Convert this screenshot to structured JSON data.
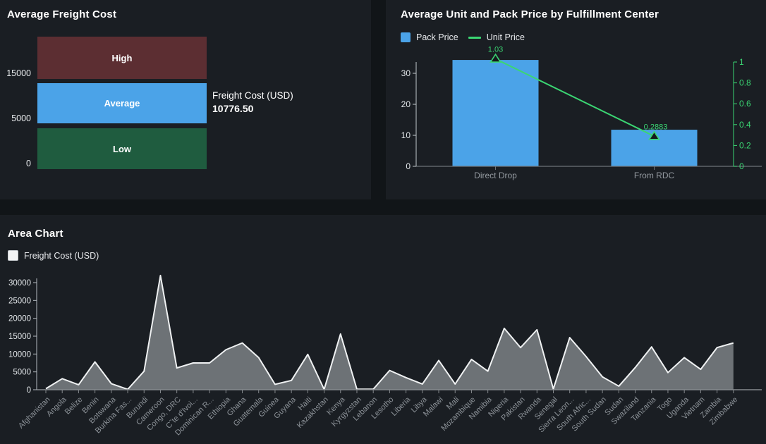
{
  "chart_data": [
    {
      "type": "gauge",
      "title": "Average Freight Cost",
      "axis_labels": [
        "15000",
        "5000",
        "0"
      ],
      "bands": [
        {
          "label": "High",
          "range": [
            15000,
            19000
          ],
          "color": "#5c2e32"
        },
        {
          "label": "Average",
          "range": [
            5000,
            15000
          ],
          "color": "#4ba3e8"
        },
        {
          "label": "Low",
          "range": [
            0,
            5000
          ],
          "color": "#1f5c3f"
        }
      ],
      "info_label": "Freight Cost (USD)",
      "info_value": "10776.50",
      "value": 10776.5
    },
    {
      "type": "bar+line",
      "title": "Average Unit and Pack Price by Fulfillment Center",
      "categories": [
        "Direct Drop",
        "From RDC"
      ],
      "series": [
        {
          "name": "Pack Price",
          "type": "bar",
          "axis": "left",
          "color": "#4ba3e8",
          "values": [
            34.3,
            11.8
          ]
        },
        {
          "name": "Unit Price",
          "type": "line",
          "axis": "right",
          "color": "#3bd673",
          "values": [
            1.03,
            0.2883
          ],
          "labels": [
            "1.03",
            "0.2883"
          ]
        }
      ],
      "left_axis_ticks": [
        0,
        10,
        20,
        30
      ],
      "right_axis_ticks": [
        0,
        0.2,
        0.4,
        0.6,
        0.8,
        1
      ],
      "left_axis_color": "#e2e6e9",
      "right_axis_color": "#3bd673",
      "category_label_color": "#959ba1",
      "legend_position": "top-left"
    },
    {
      "type": "area",
      "title": "Area Chart",
      "series_name": "Freight Cost (USD)",
      "legend_swatch_color": "#f3f4f5",
      "categories": [
        "Afghanistan",
        "Angola",
        "Belize",
        "Benin",
        "Botswana",
        "Burkina Fas...",
        "Burundi",
        "Cameroon",
        "Congo, DRC",
        "Cˆte d'Ivoi...",
        "Dominican R...",
        "Ethiopia",
        "Ghana",
        "Guatemala",
        "Guinea",
        "Guyana",
        "Haiti",
        "Kazakhstan",
        "Kenya",
        "Kyrgyzstan",
        "Lebanon",
        "Lesotho",
        "Liberia",
        "Libya",
        "Malawi",
        "Mali",
        "Mozambique",
        "Namibia",
        "Nigeria",
        "Pakistan",
        "Rwanda",
        "Senegal",
        "Sierra Leon...",
        "South Afric...",
        "South Sudan",
        "Sudan",
        "Swaziland",
        "Tanzania",
        "Togo",
        "Uganda",
        "Vietnam",
        "Zambia",
        "Zimbabwe"
      ],
      "values": [
        300,
        3100,
        1400,
        7800,
        1700,
        100,
        5200,
        32000,
        6100,
        7500,
        7500,
        11200,
        13100,
        9000,
        1500,
        2600,
        9900,
        100,
        15600,
        150,
        150,
        5400,
        3400,
        1600,
        8200,
        1600,
        8500,
        5200,
        17200,
        11800,
        16800,
        200,
        14600,
        9300,
        3600,
        1000,
        6200,
        12000,
        4800,
        9000,
        5700,
        11800,
        13100
      ],
      "y_ticks": [
        0,
        5000,
        10000,
        15000,
        20000,
        25000,
        30000
      ],
      "ylim": [
        0,
        32500
      ],
      "fill_color": "#6d7276",
      "line_color": "#eff1f2",
      "x_label_color": "#8d9399",
      "y_label_color": "#e2e6e9",
      "grid": false
    }
  ]
}
